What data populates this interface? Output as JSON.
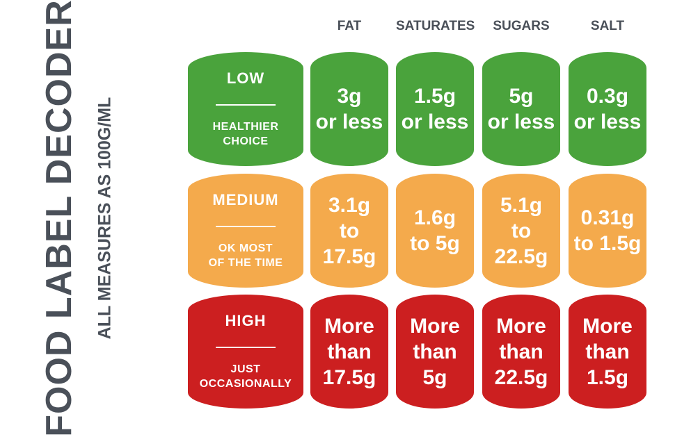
{
  "title": "FOOD LABEL DECODER",
  "subtitle": "ALL MEASURES AS 100G/ML",
  "columns": [
    "FAT",
    "SATURATES",
    "SUGARS",
    "SALT"
  ],
  "colors": {
    "low": "#4aa33c",
    "medium": "#f4aa4c",
    "high": "#cc1f20",
    "text": "#4a5059"
  },
  "rows": [
    {
      "level": "LOW",
      "description_line1": "HEALTHIER",
      "description_line2": "CHOICE",
      "values": [
        [
          "3g",
          "or less"
        ],
        [
          "1.5g",
          "or less"
        ],
        [
          "5g",
          "or less"
        ],
        [
          "0.3g",
          "or less"
        ]
      ]
    },
    {
      "level": "MEDIUM",
      "description_line1": "OK MOST",
      "description_line2": "OF THE TIME",
      "values": [
        [
          "3.1g",
          "to 17.5g"
        ],
        [
          "1.6g",
          "to 5g"
        ],
        [
          "5.1g",
          "to 22.5g"
        ],
        [
          "0.31g",
          "to 1.5g"
        ]
      ]
    },
    {
      "level": "HIGH",
      "description_line1": "JUST",
      "description_line2": "OCCASIONALLY",
      "values": [
        [
          "More",
          "than",
          "17.5g"
        ],
        [
          "More",
          "than",
          "5g"
        ],
        [
          "More",
          "than",
          "22.5g"
        ],
        [
          "More",
          "than",
          "1.5g"
        ]
      ]
    }
  ]
}
